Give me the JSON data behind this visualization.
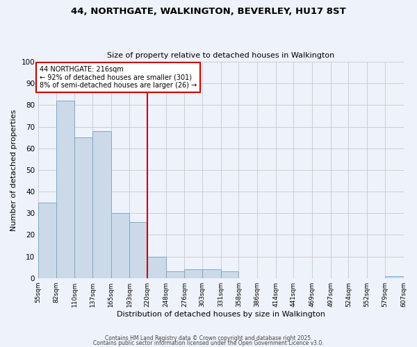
{
  "title": "44, NORTHGATE, WALKINGTON, BEVERLEY, HU17 8ST",
  "subtitle": "Size of property relative to detached houses in Walkington",
  "xlabel": "Distribution of detached houses by size in Walkington",
  "ylabel": "Number of detached properties",
  "bar_color": "#ccd9e8",
  "bar_edge_color": "#7aaac8",
  "background_color": "#eef2fa",
  "grid_color": "#c8c8c8",
  "bins": [
    55,
    82,
    110,
    137,
    165,
    193,
    220,
    248,
    276,
    303,
    331,
    358,
    386,
    414,
    441,
    469,
    497,
    524,
    552,
    579,
    607
  ],
  "bin_labels": [
    "55sqm",
    "82sqm",
    "110sqm",
    "137sqm",
    "165sqm",
    "193sqm",
    "220sqm",
    "248sqm",
    "276sqm",
    "303sqm",
    "331sqm",
    "358sqm",
    "386sqm",
    "414sqm",
    "441sqm",
    "469sqm",
    "497sqm",
    "524sqm",
    "552sqm",
    "579sqm",
    "607sqm"
  ],
  "counts": [
    35,
    82,
    65,
    68,
    30,
    26,
    10,
    3,
    4,
    4,
    3,
    0,
    0,
    0,
    0,
    0,
    0,
    0,
    0,
    1
  ],
  "vline_x": 220,
  "vline_color": "#cc0000",
  "annotation_line1": "44 NORTHGATE: 216sqm",
  "annotation_line2": "← 92% of detached houses are smaller (301)",
  "annotation_line3": "8% of semi-detached houses are larger (26) →",
  "annotation_box_color": "#cc0000",
  "ylim": [
    0,
    100
  ],
  "yticks": [
    0,
    10,
    20,
    30,
    40,
    50,
    60,
    70,
    80,
    90,
    100
  ],
  "footer1": "Contains HM Land Registry data © Crown copyright and database right 2025.",
  "footer2": "Contains public sector information licensed under the Open Government Licence v3.0."
}
